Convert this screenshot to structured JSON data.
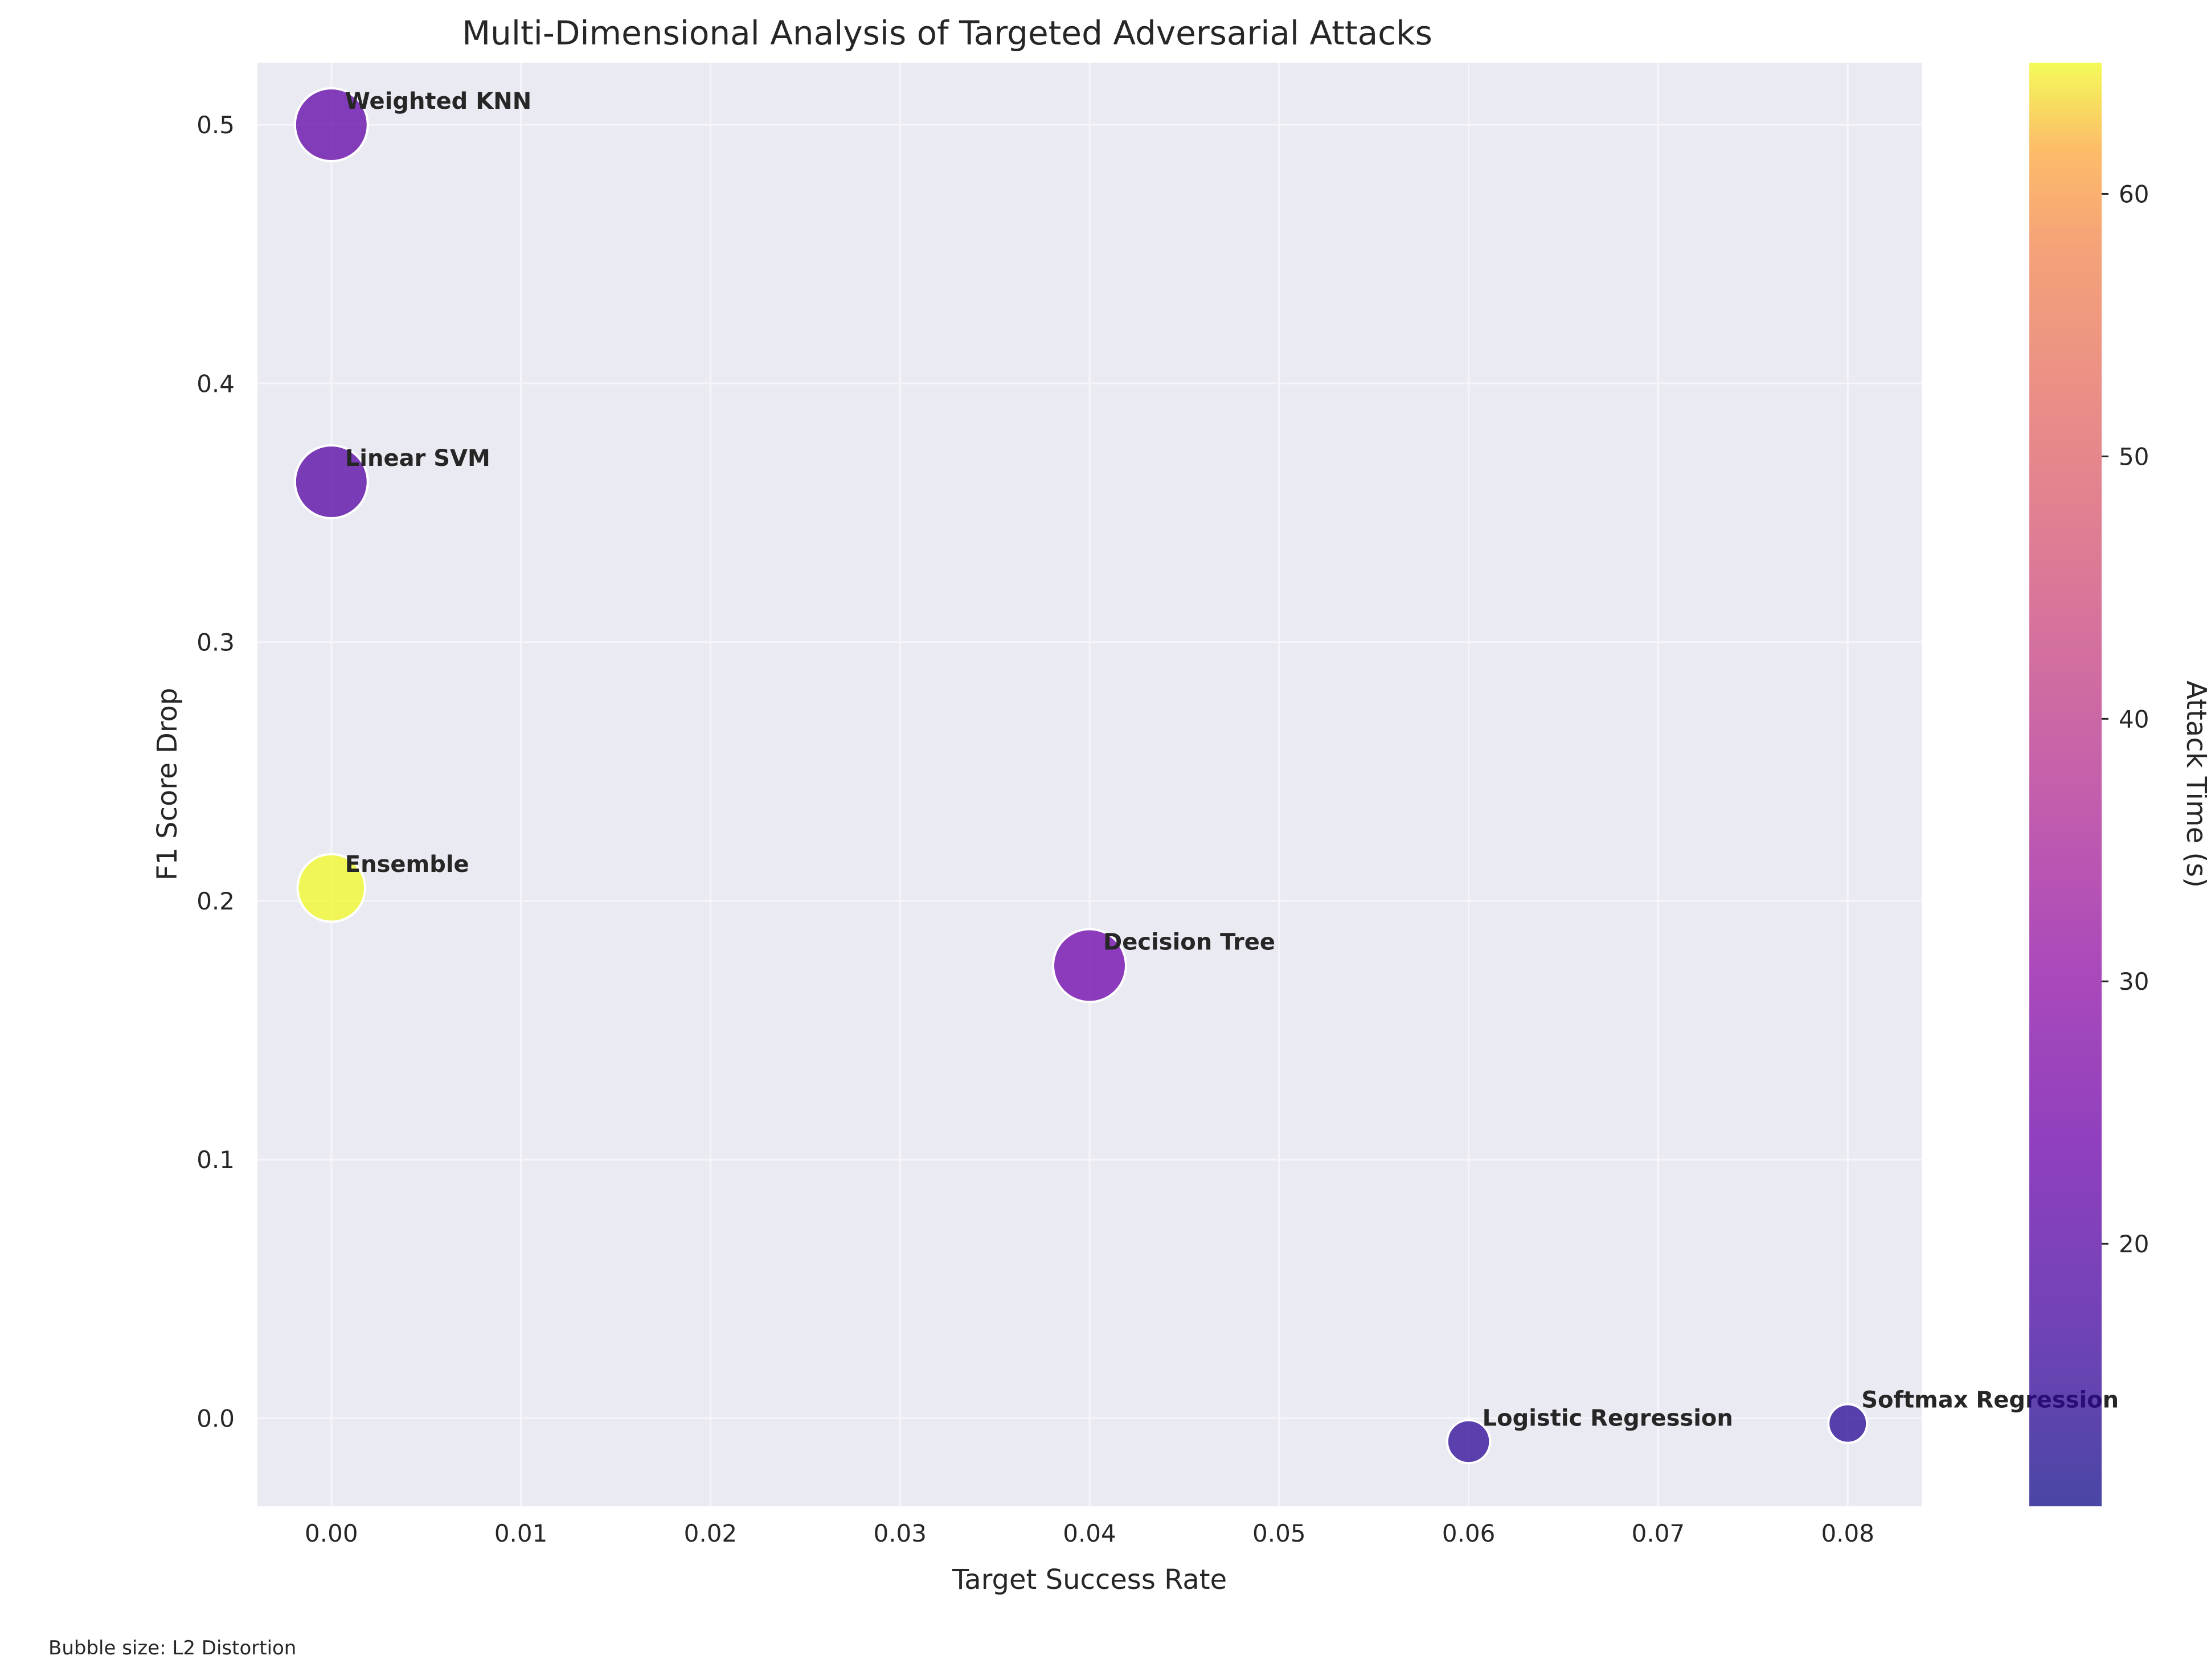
{
  "chart_data": {
    "type": "scatter",
    "title": "Multi-Dimensional Analysis of Targeted Adversarial Attacks",
    "xlabel": "Target Success Rate",
    "ylabel": "F1 Score Drop",
    "xlim": [
      -0.0039,
      0.0839
    ],
    "ylim": [
      -0.034,
      0.524
    ],
    "xticks": [
      0.0,
      0.01,
      0.02,
      0.03,
      0.04,
      0.05,
      0.06,
      0.07,
      0.08
    ],
    "xtick_labels": [
      "0.00",
      "0.01",
      "0.02",
      "0.03",
      "0.04",
      "0.05",
      "0.06",
      "0.07",
      "0.08"
    ],
    "yticks": [
      0.0,
      0.1,
      0.2,
      0.3,
      0.4,
      0.5
    ],
    "ytick_labels": [
      "0.0",
      "0.1",
      "0.2",
      "0.3",
      "0.4",
      "0.5"
    ],
    "grid": true,
    "points": [
      {
        "label": "Weighted KNN",
        "x": 0.0,
        "y": 0.5,
        "attack_time": 22,
        "l2_distortion": 1.0
      },
      {
        "label": "Linear SVM",
        "x": 0.0,
        "y": 0.362,
        "attack_time": 20,
        "l2_distortion": 1.0
      },
      {
        "label": "Ensemble",
        "x": 0.0,
        "y": 0.205,
        "attack_time": 65,
        "l2_distortion": 0.95
      },
      {
        "label": "Decision Tree",
        "x": 0.04,
        "y": 0.175,
        "attack_time": 24,
        "l2_distortion": 1.0
      },
      {
        "label": "Logistic Regression",
        "x": 0.06,
        "y": -0.009,
        "attack_time": 14,
        "l2_distortion": 0.72
      },
      {
        "label": "Softmax Regression",
        "x": 0.08,
        "y": -0.002,
        "attack_time": 13,
        "l2_distortion": 0.68
      }
    ],
    "colorbar": {
      "label": "Attack Time (s)",
      "colormap": "plasma",
      "range": [
        10,
        65
      ],
      "ticks": [
        20,
        30,
        40,
        50,
        60
      ],
      "tick_labels": [
        "20",
        "30",
        "40",
        "50",
        "60"
      ]
    },
    "footnote": "Bubble size: L2 Distortion",
    "colors": {
      "plot_background": "#eaeaf2",
      "grid": "#f6f6fa",
      "text": "#262626"
    }
  }
}
